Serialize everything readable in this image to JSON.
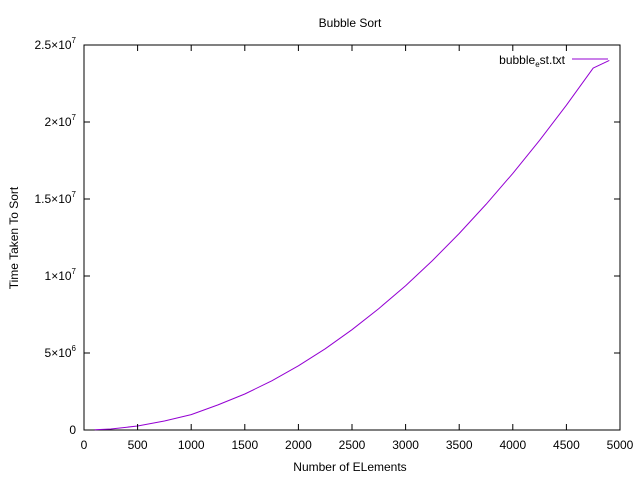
{
  "chart_data": {
    "type": "line",
    "title": "Bubble Sort",
    "xlabel": "Number of ELements",
    "ylabel": "Time Taken To Sort",
    "xlim": [
      0,
      5000
    ],
    "ylim": [
      0,
      25000000
    ],
    "x_ticks": [
      0,
      500,
      1000,
      1500,
      2000,
      2500,
      3000,
      3500,
      4000,
      4500,
      5000
    ],
    "x_tick_labels": [
      "0",
      "500",
      "1000",
      "1500",
      "2000",
      "2500",
      "3000",
      "3500",
      "4000",
      "4500",
      "5000"
    ],
    "y_ticks": [
      0,
      5000000,
      10000000,
      15000000,
      20000000,
      25000000
    ],
    "y_tick_labels": [
      {
        "mantissa": "0",
        "exponent": ""
      },
      {
        "mantissa": "5×10",
        "exponent": "6"
      },
      {
        "mantissa": "1×10",
        "exponent": "7"
      },
      {
        "mantissa": "1.5×10",
        "exponent": "7"
      },
      {
        "mantissa": "2×10",
        "exponent": "7"
      },
      {
        "mantissa": "2.5×10",
        "exponent": "7"
      }
    ],
    "grid": false,
    "legend_position": "top-right",
    "legend": {
      "prefix": "bubble",
      "subscript": "e",
      "suffix": "st.txt"
    },
    "series": [
      {
        "color": "#9400d3",
        "x": [
          100,
          250,
          500,
          750,
          1000,
          1250,
          1500,
          1750,
          2000,
          2250,
          2500,
          2750,
          3000,
          3250,
          3500,
          3750,
          4000,
          4250,
          4500,
          4750,
          4900
        ],
        "y": [
          10000,
          65000,
          260000,
          585000,
          1000000,
          1630000,
          2340000,
          3190000,
          4170000,
          5270000,
          6510000,
          7880000,
          9370000,
          11000000,
          12760000,
          14650000,
          16660000,
          18810000,
          21090000,
          23500000,
          24000000
        ]
      }
    ]
  }
}
